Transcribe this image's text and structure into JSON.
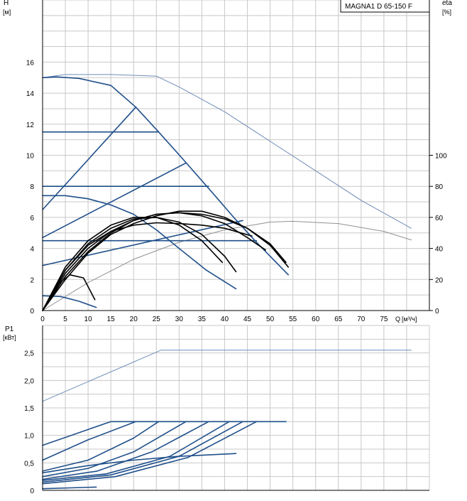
{
  "header": {
    "model": "MAGNA1 D 65-150 F"
  },
  "colors": {
    "grid": "#c8c8c8",
    "axis": "#000000",
    "pump_curve": "#1f4f8a",
    "eta_curve": "#000000",
    "max_curve": "#6e8cb8",
    "eta_max_curve": "#909090"
  },
  "chart_data": [
    {
      "type": "line",
      "title": "",
      "ylabel": "H",
      "yunit": "[м]",
      "y2label": "eta",
      "y2unit": "[%]",
      "xlabel": "Q",
      "xunit": "[м³/ч]",
      "xlim": [
        0,
        85
      ],
      "ylim": [
        0,
        20
      ],
      "y2lim": [
        0,
        100
      ],
      "x_ticks": [
        0,
        5,
        10,
        15,
        20,
        25,
        30,
        35,
        40,
        45,
        50,
        55,
        60,
        65,
        70,
        75
      ],
      "x_tick_labels": [
        "0",
        "5",
        "10",
        "15",
        "20",
        "25",
        "30",
        "35",
        "40",
        "45",
        "50",
        "55",
        "60",
        "65",
        "70",
        "75"
      ],
      "y_ticks": [
        0,
        2,
        4,
        6,
        8,
        10,
        12,
        14,
        16
      ],
      "y_tick_labels": [
        "0",
        "2",
        "4",
        "6",
        "8",
        "10",
        "12",
        "14",
        "16"
      ],
      "y2_ticks": [
        0,
        20,
        40,
        60,
        80,
        100
      ],
      "y2_tick_labels": [
        "0",
        "20",
        "40",
        "60",
        "80",
        "100"
      ],
      "grid": true,
      "series": [
        {
          "kind": "max",
          "x": [
            0,
            5,
            15,
            25,
            30,
            40,
            50,
            60,
            70,
            81
          ],
          "y": [
            15,
            15.2,
            15.2,
            15.1,
            14.4,
            12.8,
            10.9,
            9.0,
            7.1,
            5.3
          ]
        },
        {
          "kind": "eta-max",
          "axis": "y2",
          "x": [
            0,
            10,
            20,
            30,
            40,
            50,
            55,
            65,
            75,
            81
          ],
          "y": [
            0,
            18,
            33,
            44,
            52,
            57,
            57.5,
            56,
            51,
            45.5
          ]
        },
        {
          "kind": "pump",
          "x": [
            0,
            3,
            8,
            15,
            20.5,
            25.5,
            31,
            37,
            42,
            47,
            54
          ],
          "y": [
            15,
            15.05,
            14.95,
            14.5,
            13.1,
            11.5,
            9.7,
            7.7,
            6.0,
            4.4,
            2.3
          ]
        },
        {
          "kind": "pump",
          "x": [
            0,
            20.5
          ],
          "y": [
            6.5,
            13.1
          ]
        },
        {
          "kind": "pump",
          "x": [
            0,
            25.5
          ],
          "y": [
            11.5,
            11.5
          ]
        },
        {
          "kind": "pump",
          "x": [
            0,
            31.5
          ],
          "y": [
            4.7,
            9.5
          ]
        },
        {
          "kind": "pump",
          "x": [
            0,
            36.5
          ],
          "y": [
            8.0,
            8.0
          ]
        },
        {
          "kind": "pump",
          "x": [
            0,
            44
          ],
          "y": [
            2.9,
            5.8
          ]
        },
        {
          "kind": "pump",
          "x": [
            0,
            47
          ],
          "y": [
            4.5,
            4.5
          ]
        },
        {
          "kind": "pump",
          "x": [
            0,
            5,
            10,
            15,
            20,
            25,
            30,
            36,
            42.5
          ],
          "y": [
            7.4,
            7.4,
            7.2,
            6.8,
            6.2,
            5.2,
            4.0,
            2.6,
            1.4
          ]
        },
        {
          "kind": "pump",
          "x": [
            0,
            4,
            8,
            11.8
          ],
          "y": [
            0.95,
            0.9,
            0.6,
            0.2
          ]
        },
        {
          "kind": "eta",
          "axis": "y2",
          "x": [
            0,
            5,
            10,
            15,
            20,
            25,
            30,
            35,
            40,
            45,
            50,
            54
          ],
          "y": [
            0,
            20,
            37,
            49,
            56,
            61,
            64,
            64,
            60,
            53,
            42,
            28
          ]
        },
        {
          "kind": "eta",
          "axis": "y2",
          "x": [
            0,
            5,
            10,
            15,
            20,
            25,
            30,
            35,
            40,
            45,
            50,
            53.5
          ],
          "y": [
            0,
            22,
            38,
            50,
            58,
            62,
            63,
            62,
            59,
            53,
            43,
            31
          ]
        },
        {
          "kind": "eta",
          "axis": "y2",
          "x": [
            0,
            5,
            10,
            15,
            20,
            25,
            30,
            35,
            40,
            45,
            49
          ],
          "y": [
            0,
            24,
            40,
            51,
            58,
            62,
            63,
            61,
            56,
            47,
            39
          ]
        },
        {
          "kind": "eta",
          "axis": "y2",
          "x": [
            0,
            5,
            10,
            15,
            20,
            25,
            30,
            35,
            40,
            42.5
          ],
          "y": [
            0,
            26,
            43,
            53,
            59,
            60,
            57,
            49,
            35,
            25
          ]
        },
        {
          "kind": "eta",
          "axis": "y2",
          "x": [
            0,
            5,
            10,
            15,
            20,
            25,
            30,
            35,
            39.5
          ],
          "y": [
            0,
            28,
            45,
            55,
            60,
            60,
            55,
            45,
            31
          ]
        },
        {
          "kind": "eta",
          "axis": "y2",
          "x": [
            0,
            5,
            10,
            15,
            20,
            25,
            30,
            35,
            40,
            46
          ],
          "y": [
            0,
            26,
            42,
            51,
            55,
            56.5,
            56,
            55,
            53,
            48
          ]
        },
        {
          "kind": "eta",
          "axis": "y2",
          "x": [
            0,
            3,
            6,
            9,
            11.5
          ],
          "y": [
            0,
            16,
            23,
            21,
            7
          ]
        }
      ]
    },
    {
      "type": "line",
      "title": "",
      "ylabel": "P1",
      "yunit": "[кВт]",
      "xlim": [
        0,
        85
      ],
      "ylim": [
        0,
        3.0
      ],
      "y_ticks": [
        0,
        0.5,
        1.0,
        1.5,
        2.0,
        2.5
      ],
      "y_tick_labels": [
        "0",
        "0,5",
        "1,0",
        "1,5",
        "2,0",
        "2,5"
      ],
      "grid": true,
      "series": [
        {
          "kind": "max",
          "x": [
            0,
            26,
            81
          ],
          "y": [
            1.62,
            2.55,
            2.55
          ]
        },
        {
          "kind": "pump",
          "x": [
            0,
            15,
            53.5
          ],
          "y": [
            0.82,
            1.25,
            1.25
          ]
        },
        {
          "kind": "pump",
          "x": [
            0,
            10,
            20.5
          ],
          "y": [
            0.55,
            0.92,
            1.25
          ]
        },
        {
          "kind": "pump",
          "x": [
            0,
            10,
            20,
            25.5
          ],
          "y": [
            0.35,
            0.55,
            0.95,
            1.25
          ]
        },
        {
          "kind": "pump",
          "x": [
            0,
            10,
            20,
            31.5
          ],
          "y": [
            0.25,
            0.4,
            0.7,
            1.25
          ]
        },
        {
          "kind": "pump",
          "x": [
            0,
            12,
            24,
            36.5
          ],
          "y": [
            0.2,
            0.35,
            0.7,
            1.25
          ]
        },
        {
          "kind": "pump",
          "x": [
            0,
            14,
            28,
            41
          ],
          "y": [
            0.18,
            0.3,
            0.62,
            1.25
          ]
        },
        {
          "kind": "pump",
          "x": [
            0,
            15,
            30,
            44
          ],
          "y": [
            0.15,
            0.28,
            0.62,
            1.25
          ]
        },
        {
          "kind": "pump",
          "x": [
            0,
            16,
            32,
            47
          ],
          "y": [
            0.12,
            0.25,
            0.6,
            1.25
          ]
        },
        {
          "kind": "pump",
          "x": [
            0,
            10,
            20,
            30,
            42.5
          ],
          "y": [
            0.32,
            0.45,
            0.55,
            0.62,
            0.67
          ]
        },
        {
          "kind": "pump",
          "x": [
            0,
            11.8
          ],
          "y": [
            0.03,
            0.06
          ]
        }
      ]
    }
  ]
}
